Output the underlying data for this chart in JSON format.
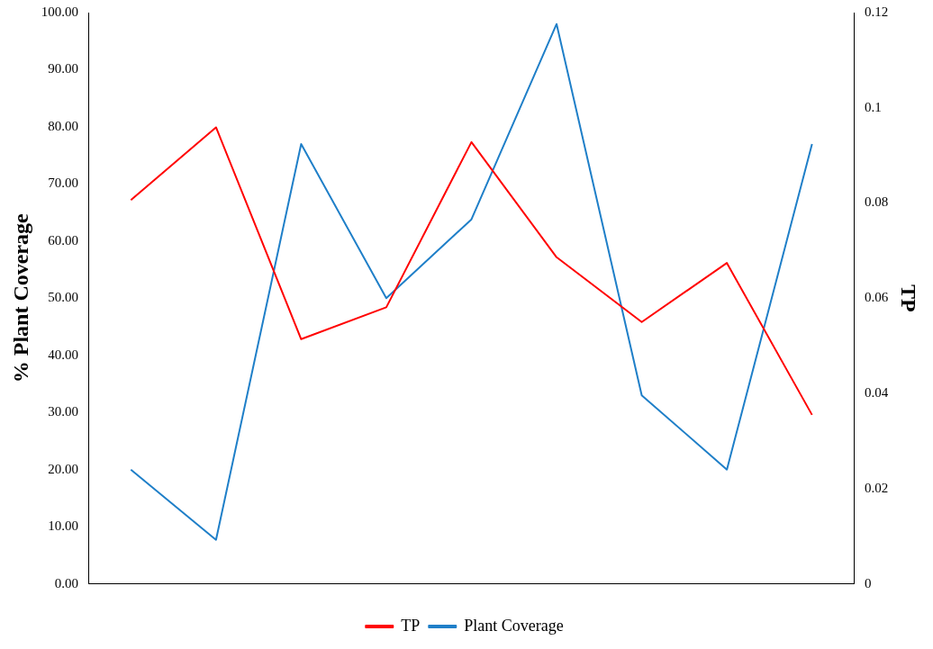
{
  "chart_data": {
    "type": "line",
    "ylabel": "% Plant Coverage",
    "y2label": "TP",
    "categories": [
      null,
      null,
      null,
      null,
      null,
      null,
      null,
      null,
      null
    ],
    "series": [
      {
        "name": "TP",
        "color": "#ff0000",
        "axis": "y2",
        "values": [
          0.0806,
          0.0959,
          0.0514,
          0.0581,
          0.0928,
          0.0686,
          0.055,
          0.0674,
          0.0355
        ]
      },
      {
        "name": "Plant Coverage",
        "color": "#1f7fc8",
        "values": [
          20,
          7.7,
          77,
          50,
          63.8,
          98,
          33,
          20,
          77
        ]
      }
    ],
    "ylim": [
      0,
      100
    ],
    "yticks": [
      {
        "value": 0,
        "label": "0.00"
      },
      {
        "value": 10,
        "label": "10.00"
      },
      {
        "value": 20,
        "label": "20.00"
      },
      {
        "value": 30,
        "label": "30.00"
      },
      {
        "value": 40,
        "label": "40.00"
      },
      {
        "value": 50,
        "label": "50.00"
      },
      {
        "value": 60,
        "label": "60.00"
      },
      {
        "value": 70,
        "label": "70.00"
      },
      {
        "value": 80,
        "label": "80.00"
      },
      {
        "value": 90,
        "label": "90.00"
      },
      {
        "value": 100,
        "label": "100.00"
      }
    ],
    "y2lim": [
      0,
      0.12
    ],
    "y2ticks": [
      0,
      0.02,
      0.04,
      0.06,
      0.08,
      0.1,
      0.12
    ],
    "grid": false,
    "legend": "bottom",
    "marker": "none",
    "line_style": "solid"
  }
}
